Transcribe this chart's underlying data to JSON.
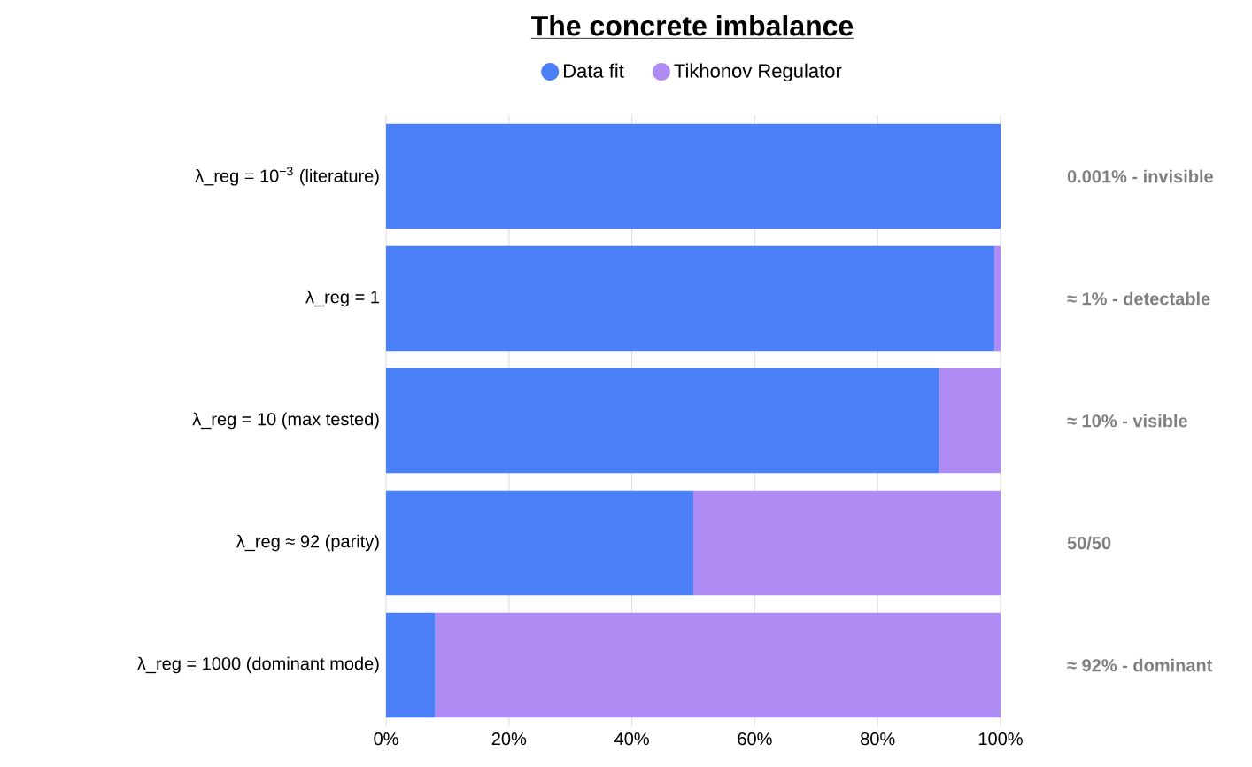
{
  "chart_data": {
    "type": "bar",
    "orientation": "horizontal",
    "stacked": true,
    "title": "The concrete imbalance",
    "categories": [
      "λ_reg = 10$^{−3}$ (literature)",
      "λ_reg = 1",
      "λ_reg = 10 (max tested)",
      "λ_reg ≈ 92 (parity)",
      "λ_reg = 1000 (dominant mode)"
    ],
    "series": [
      {
        "name": "Data fit",
        "color": "#4a7ff5",
        "values": [
          100,
          99,
          90,
          50,
          8
        ]
      },
      {
        "name": "Tikhonov Regulator",
        "color": "#ae8cf4",
        "values": [
          0,
          1,
          10,
          50,
          92
        ]
      }
    ],
    "xlim": [
      0,
      100
    ],
    "xticks": [
      {
        "value": 0,
        "label": "0%"
      },
      {
        "value": 20,
        "label": "20%"
      },
      {
        "value": 40,
        "label": "40%"
      },
      {
        "value": 60,
        "label": "60%"
      },
      {
        "value": 80,
        "label": "80%"
      },
      {
        "value": 100,
        "label": "100%"
      }
    ],
    "grid": "x",
    "legend": "top",
    "annotations": [
      "0.001% - invisible",
      "≈ 1% - detectable",
      "≈ 10% - visible",
      "50/50",
      "≈ 92% - dominant"
    ]
  }
}
